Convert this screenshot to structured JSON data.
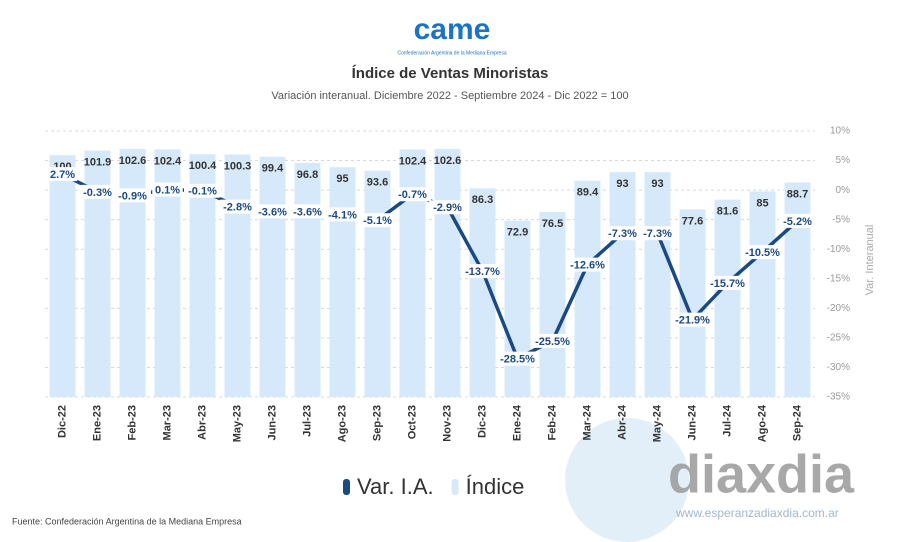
{
  "chart_data": {
    "type": "bar-line",
    "logo": "came",
    "logo_subtitle": "Confederación Argentina de la Mediana Empresa",
    "title": "Índice de Ventas Minoristas",
    "subtitle": "Variación interanual. Diciembre 2022 - Septiembre 2024 - Dic 2022 = 100",
    "categories": [
      "Dic-22",
      "Ene-23",
      "Feb-23",
      "Mar-23",
      "Abr-23",
      "May-23",
      "Jun-23",
      "Jul-23",
      "Ago-23",
      "Sep-23",
      "Oct-23",
      "Nov-23",
      "Dic-23",
      "Ene-24",
      "Feb-24",
      "Mar-24",
      "Abr-24",
      "May-24",
      "Jun-24",
      "Jul-24",
      "Ago-24",
      "Sep-24"
    ],
    "ylim": [
      0,
      110
    ],
    "y2lim": [
      -35,
      10
    ],
    "y2ticks": [
      {
        "value": 10,
        "label": "10%"
      },
      {
        "value": 5,
        "label": "5%"
      },
      {
        "value": 0,
        "label": "0%"
      },
      {
        "value": -5,
        "label": "-5%"
      },
      {
        "value": -10,
        "label": "-10%"
      },
      {
        "value": -15,
        "label": "-15%"
      },
      {
        "value": -20,
        "label": "-20%"
      },
      {
        "value": -25,
        "label": "-25%"
      },
      {
        "value": -30,
        "label": "-30%"
      },
      {
        "value": -35,
        "label": "-35%"
      }
    ],
    "y2label": "Var. Interanual",
    "grid": true,
    "series": [
      {
        "name": "Var. I.A.",
        "kind": "line",
        "axis": "y2",
        "color": "#1b4a82",
        "values": [
          2.7,
          -0.3,
          -0.9,
          0.1,
          -0.1,
          -2.8,
          -3.6,
          -3.6,
          -4.1,
          -5.1,
          -0.7,
          -2.9,
          -13.7,
          -28.5,
          -25.5,
          -12.6,
          -7.3,
          -7.3,
          -21.9,
          -15.7,
          -10.5,
          -5.2
        ],
        "value_labels": [
          "2.7%",
          "-0.3%",
          "-0.9%",
          "0.1%",
          "-0.1%",
          "-2.8%",
          "-3.6%",
          "-3.6%",
          "-4.1%",
          "-5.1%",
          "-0.7%",
          "-2.9%",
          "-13.7%",
          "-28.5%",
          "-25.5%",
          "-12.6%",
          "-7.3%",
          "-7.3%",
          "-21.9%",
          "-15.7%",
          "-10.5%",
          "-5.2%"
        ]
      },
      {
        "name": "Índice",
        "kind": "bar",
        "color": "#d5e9fa",
        "values": [
          100,
          101.9,
          102.6,
          102.4,
          100.4,
          100.3,
          99.4,
          96.8,
          95,
          93.6,
          102.4,
          102.6,
          86.3,
          72.9,
          76.5,
          89.4,
          93,
          93,
          77.6,
          81.6,
          85,
          88.7
        ]
      }
    ],
    "source": "Fuente: Confederación Argentina de la Mediana Empresa",
    "watermark": "diaxdia",
    "watermark_url": "www.esperanzadiaxdia.com.ar"
  }
}
